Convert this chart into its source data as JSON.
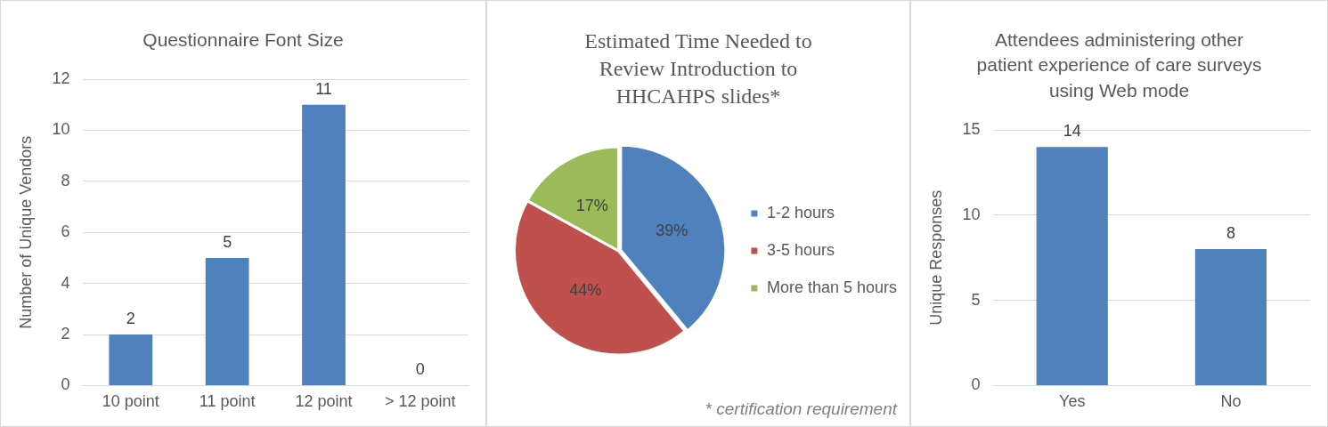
{
  "chart_data": [
    {
      "type": "bar",
      "title": "Questionnaire Font Size",
      "ylabel": "Number of Unique Vendors",
      "categories": [
        "10 point",
        "11 point",
        "12 point",
        "> 12 point"
      ],
      "values": [
        2,
        5,
        11,
        0
      ],
      "color": "#4f81bd",
      "ylim": [
        0,
        12
      ],
      "yticks": [
        0,
        2,
        4,
        6,
        8,
        10,
        12
      ],
      "grid": "y",
      "data_labels": true,
      "legend": false
    },
    {
      "type": "pie",
      "title": "Estimated Time Needed to Review Introduction to HHCAHPS slides*",
      "categories": [
        "1-2 hours",
        "3-5 hours",
        "More than 5 hours"
      ],
      "values": [
        39,
        44,
        17
      ],
      "colors": [
        "#4f81bd",
        "#c0504d",
        "#9bbb59"
      ],
      "value_labels": [
        "39%",
        "44%",
        "17%"
      ],
      "legend": "right",
      "annotations": [
        "* certification requirement"
      ]
    },
    {
      "type": "bar",
      "title": "Attendees administering other patient experience of care surveys using Web mode",
      "ylabel": "Unique Responses",
      "categories": [
        "Yes",
        "No"
      ],
      "values": [
        14,
        8
      ],
      "color": "#4f81bd",
      "ylim": [
        0,
        15
      ],
      "yticks": [
        0,
        5,
        10,
        15
      ],
      "grid": "y",
      "data_labels": true,
      "legend": false
    }
  ]
}
